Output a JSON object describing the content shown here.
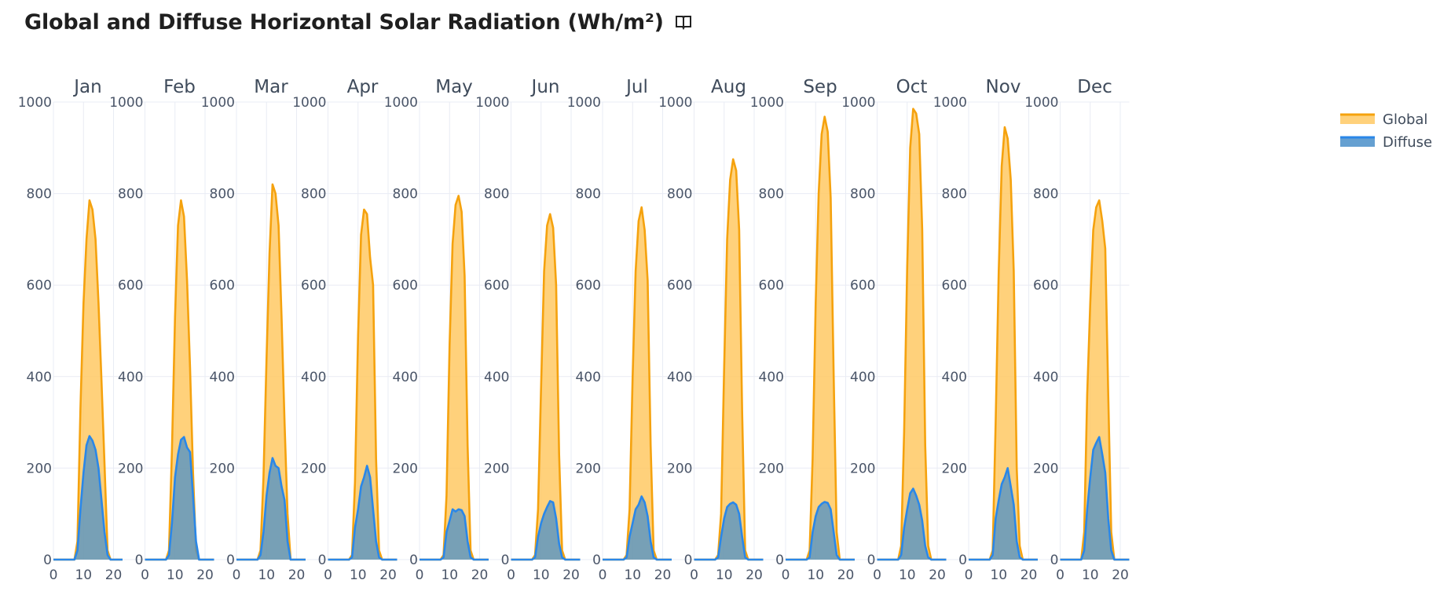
{
  "title": "Global and Diffuse Horizontal Solar Radiation (Wh/m²)",
  "icon": "book-icon",
  "chart_data": {
    "type": "area",
    "ylim": [
      0,
      1000
    ],
    "yticks": [
      0,
      200,
      400,
      600,
      800,
      1000
    ],
    "xlim": [
      0,
      23
    ],
    "xticks": [
      0,
      10,
      20
    ],
    "grid": true,
    "legend_placement": "top-right",
    "colors": {
      "global_line": "#f5a20e",
      "global_fill": "#ffc964",
      "diffuse_line": "#2a87e8",
      "diffuse_fill": "#4a8fc9",
      "grid": "#e9ecf4"
    },
    "x": [
      0,
      1,
      2,
      3,
      4,
      5,
      6,
      7,
      8,
      9,
      10,
      11,
      12,
      13,
      14,
      15,
      16,
      17,
      18,
      19,
      20,
      21,
      22,
      23
    ],
    "series": [
      {
        "name": "Global",
        "color": "#f5a20e"
      },
      {
        "name": "Diffuse",
        "color": "#2a87e8"
      }
    ],
    "panels": [
      {
        "month": "Jan",
        "global": [
          0,
          0,
          0,
          0,
          0,
          0,
          0,
          0,
          40,
          330,
          560,
          700,
          785,
          765,
          700,
          560,
          390,
          210,
          20,
          0,
          0,
          0,
          0,
          0
        ],
        "diffuse": [
          0,
          0,
          0,
          0,
          0,
          0,
          0,
          0,
          20,
          110,
          190,
          250,
          270,
          260,
          240,
          200,
          130,
          60,
          10,
          0,
          0,
          0,
          0,
          0
        ]
      },
      {
        "month": "Feb",
        "global": [
          0,
          0,
          0,
          0,
          0,
          0,
          0,
          0,
          20,
          240,
          530,
          730,
          785,
          750,
          610,
          420,
          190,
          20,
          0,
          0,
          0,
          0,
          0,
          0
        ],
        "diffuse": [
          0,
          0,
          0,
          0,
          0,
          0,
          0,
          0,
          10,
          80,
          180,
          230,
          262,
          268,
          245,
          235,
          140,
          40,
          0,
          0,
          0,
          0,
          0,
          0
        ]
      },
      {
        "month": "Mar",
        "global": [
          0,
          0,
          0,
          0,
          0,
          0,
          0,
          0,
          20,
          180,
          440,
          670,
          820,
          800,
          730,
          530,
          300,
          100,
          0,
          0,
          0,
          0,
          0,
          0
        ],
        "diffuse": [
          0,
          0,
          0,
          0,
          0,
          0,
          0,
          0,
          10,
          60,
          140,
          190,
          222,
          205,
          200,
          160,
          130,
          40,
          0,
          0,
          0,
          0,
          0,
          0
        ]
      },
      {
        "month": "Apr",
        "global": [
          0,
          0,
          0,
          0,
          0,
          0,
          0,
          0,
          10,
          170,
          490,
          710,
          765,
          755,
          660,
          600,
          220,
          20,
          0,
          0,
          0,
          0,
          0,
          0
        ],
        "diffuse": [
          0,
          0,
          0,
          0,
          0,
          0,
          0,
          0,
          5,
          70,
          110,
          160,
          180,
          205,
          180,
          110,
          40,
          5,
          0,
          0,
          0,
          0,
          0,
          0
        ]
      },
      {
        "month": "May",
        "global": [
          0,
          0,
          0,
          0,
          0,
          0,
          0,
          0,
          10,
          140,
          470,
          690,
          775,
          795,
          760,
          620,
          250,
          20,
          0,
          0,
          0,
          0,
          0,
          0
        ],
        "diffuse": [
          0,
          0,
          0,
          0,
          0,
          0,
          0,
          0,
          5,
          60,
          85,
          110,
          105,
          110,
          108,
          95,
          40,
          5,
          0,
          0,
          0,
          0,
          0,
          0
        ]
      },
      {
        "month": "Jun",
        "global": [
          0,
          0,
          0,
          0,
          0,
          0,
          0,
          0,
          10,
          110,
          380,
          630,
          730,
          755,
          725,
          600,
          230,
          20,
          0,
          0,
          0,
          0,
          0,
          0
        ],
        "diffuse": [
          0,
          0,
          0,
          0,
          0,
          0,
          0,
          0,
          5,
          50,
          80,
          100,
          115,
          128,
          125,
          90,
          35,
          5,
          0,
          0,
          0,
          0,
          0,
          0
        ]
      },
      {
        "month": "Jul",
        "global": [
          0,
          0,
          0,
          0,
          0,
          0,
          0,
          0,
          10,
          110,
          400,
          630,
          740,
          770,
          720,
          610,
          250,
          20,
          0,
          0,
          0,
          0,
          0,
          0
        ],
        "diffuse": [
          0,
          0,
          0,
          0,
          0,
          0,
          0,
          0,
          5,
          50,
          80,
          110,
          120,
          138,
          125,
          95,
          40,
          5,
          0,
          0,
          0,
          0,
          0,
          0
        ]
      },
      {
        "month": "Aug",
        "global": [
          0,
          0,
          0,
          0,
          0,
          0,
          0,
          0,
          10,
          100,
          420,
          700,
          830,
          875,
          850,
          720,
          320,
          20,
          0,
          0,
          0,
          0,
          0,
          0
        ],
        "diffuse": [
          0,
          0,
          0,
          0,
          0,
          0,
          0,
          0,
          5,
          50,
          90,
          115,
          122,
          125,
          120,
          100,
          50,
          5,
          0,
          0,
          0,
          0,
          0,
          0
        ]
      },
      {
        "month": "Sep",
        "global": [
          0,
          0,
          0,
          0,
          0,
          0,
          0,
          0,
          20,
          220,
          560,
          800,
          930,
          968,
          935,
          790,
          400,
          60,
          0,
          0,
          0,
          0,
          0,
          0
        ],
        "diffuse": [
          0,
          0,
          0,
          0,
          0,
          0,
          0,
          0,
          5,
          60,
          95,
          115,
          122,
          126,
          124,
          110,
          60,
          10,
          0,
          0,
          0,
          0,
          0,
          0
        ]
      },
      {
        "month": "Oct",
        "global": [
          0,
          0,
          0,
          0,
          0,
          0,
          0,
          0,
          30,
          280,
          640,
          900,
          985,
          975,
          930,
          720,
          250,
          30,
          0,
          0,
          0,
          0,
          0,
          0
        ],
        "diffuse": [
          0,
          0,
          0,
          0,
          0,
          0,
          0,
          0,
          10,
          70,
          110,
          145,
          155,
          140,
          120,
          85,
          30,
          5,
          0,
          0,
          0,
          0,
          0,
          0
        ]
      },
      {
        "month": "Nov",
        "global": [
          0,
          0,
          0,
          0,
          0,
          0,
          0,
          0,
          20,
          300,
          630,
          860,
          945,
          920,
          830,
          630,
          200,
          30,
          0,
          0,
          0,
          0,
          0,
          0
        ],
        "diffuse": [
          0,
          0,
          0,
          0,
          0,
          0,
          0,
          0,
          10,
          90,
          130,
          165,
          180,
          200,
          160,
          120,
          40,
          5,
          0,
          0,
          0,
          0,
          0,
          0
        ]
      },
      {
        "month": "Dec",
        "global": [
          0,
          0,
          0,
          0,
          0,
          0,
          0,
          0,
          60,
          360,
          560,
          720,
          770,
          785,
          740,
          680,
          360,
          60,
          0,
          0,
          0,
          0,
          0,
          0
        ],
        "diffuse": [
          0,
          0,
          0,
          0,
          0,
          0,
          0,
          0,
          20,
          110,
          180,
          240,
          255,
          268,
          230,
          190,
          90,
          20,
          0,
          0,
          0,
          0,
          0,
          0
        ]
      }
    ]
  }
}
